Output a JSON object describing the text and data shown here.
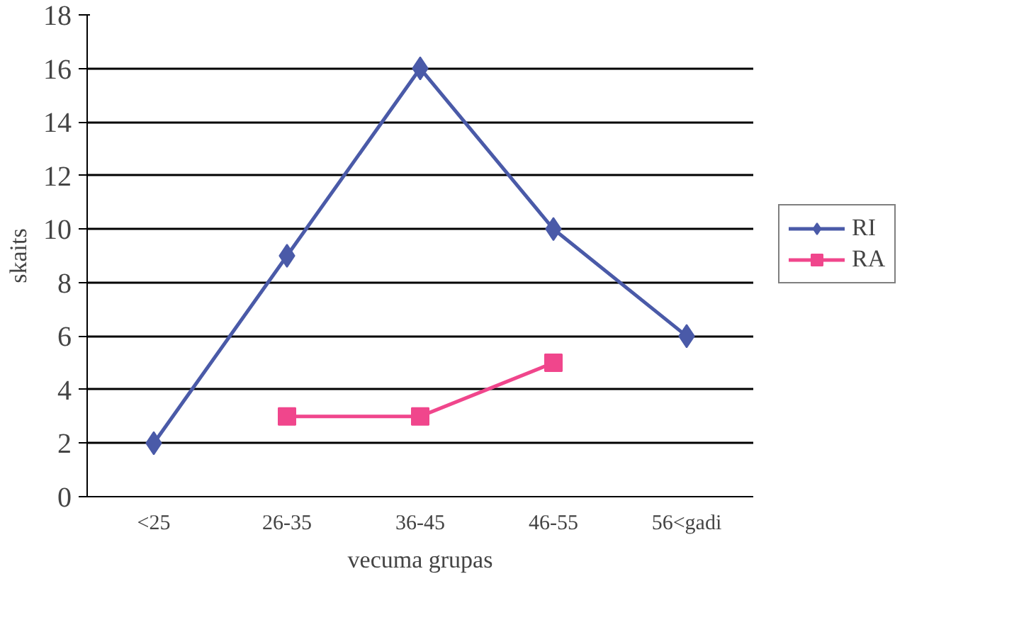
{
  "chart_data": {
    "type": "line",
    "xlabel": "vecuma grupas",
    "ylabel": "skaits",
    "categories": [
      "<25",
      "26-35",
      "36-45",
      "46-55",
      "56<gadi"
    ],
    "series": [
      {
        "name": "RI",
        "color": "#4a5aa8",
        "marker": "diamond",
        "values": [
          2,
          9,
          16,
          10,
          6
        ]
      },
      {
        "name": "RA",
        "color": "#f0468c",
        "marker": "square",
        "values": [
          null,
          3,
          3,
          5,
          null
        ]
      }
    ],
    "ylim": [
      0,
      18
    ],
    "yticks": [
      0,
      2,
      4,
      6,
      8,
      10,
      12,
      14,
      16,
      18
    ],
    "grid": "y",
    "legend": "right",
    "line_style": "solid"
  }
}
